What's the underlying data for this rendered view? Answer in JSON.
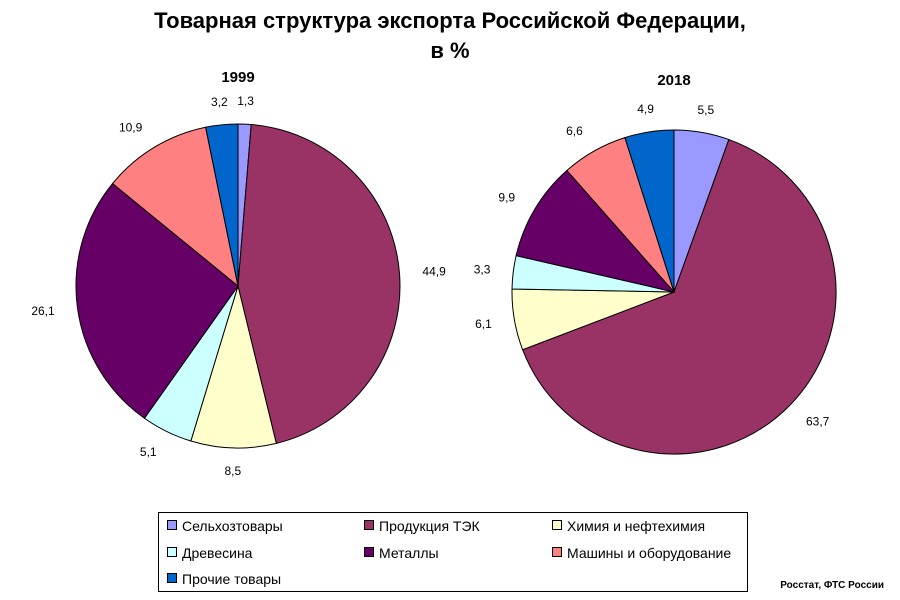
{
  "title": {
    "line1": "Товарная структура экспорта Российской Федерации,",
    "line2": "в %"
  },
  "source": "Росстат, ФТС России",
  "chart_data": {
    "type": "pie",
    "categories": [
      "Сельхозтовары",
      "Продукция ТЭК",
      "Химия и нефтехимия",
      "Древесина",
      "Металлы",
      "Машины и оборудование",
      "Прочие товары"
    ],
    "colors": [
      "#9999ff",
      "#993366",
      "#ffffcc",
      "#ccffff",
      "#660066",
      "#ff8080",
      "#0066cc"
    ],
    "series": [
      {
        "name": "1999",
        "values": [
          1.3,
          44.9,
          8.5,
          5.1,
          26.1,
          10.9,
          3.2
        ]
      },
      {
        "name": "2018",
        "values": [
          5.5,
          63.7,
          6.1,
          3.3,
          9.9,
          6.6,
          4.9
        ]
      }
    ],
    "value_labels": [
      [
        "1,3",
        "44,9",
        "8,5",
        "5,1",
        "26,1",
        "10,9",
        "3,2"
      ],
      [
        "5,5",
        "63,7",
        "6,1",
        "3,3",
        "9,9",
        "6,6",
        "4,9"
      ]
    ],
    "legend_position": "bottom"
  }
}
